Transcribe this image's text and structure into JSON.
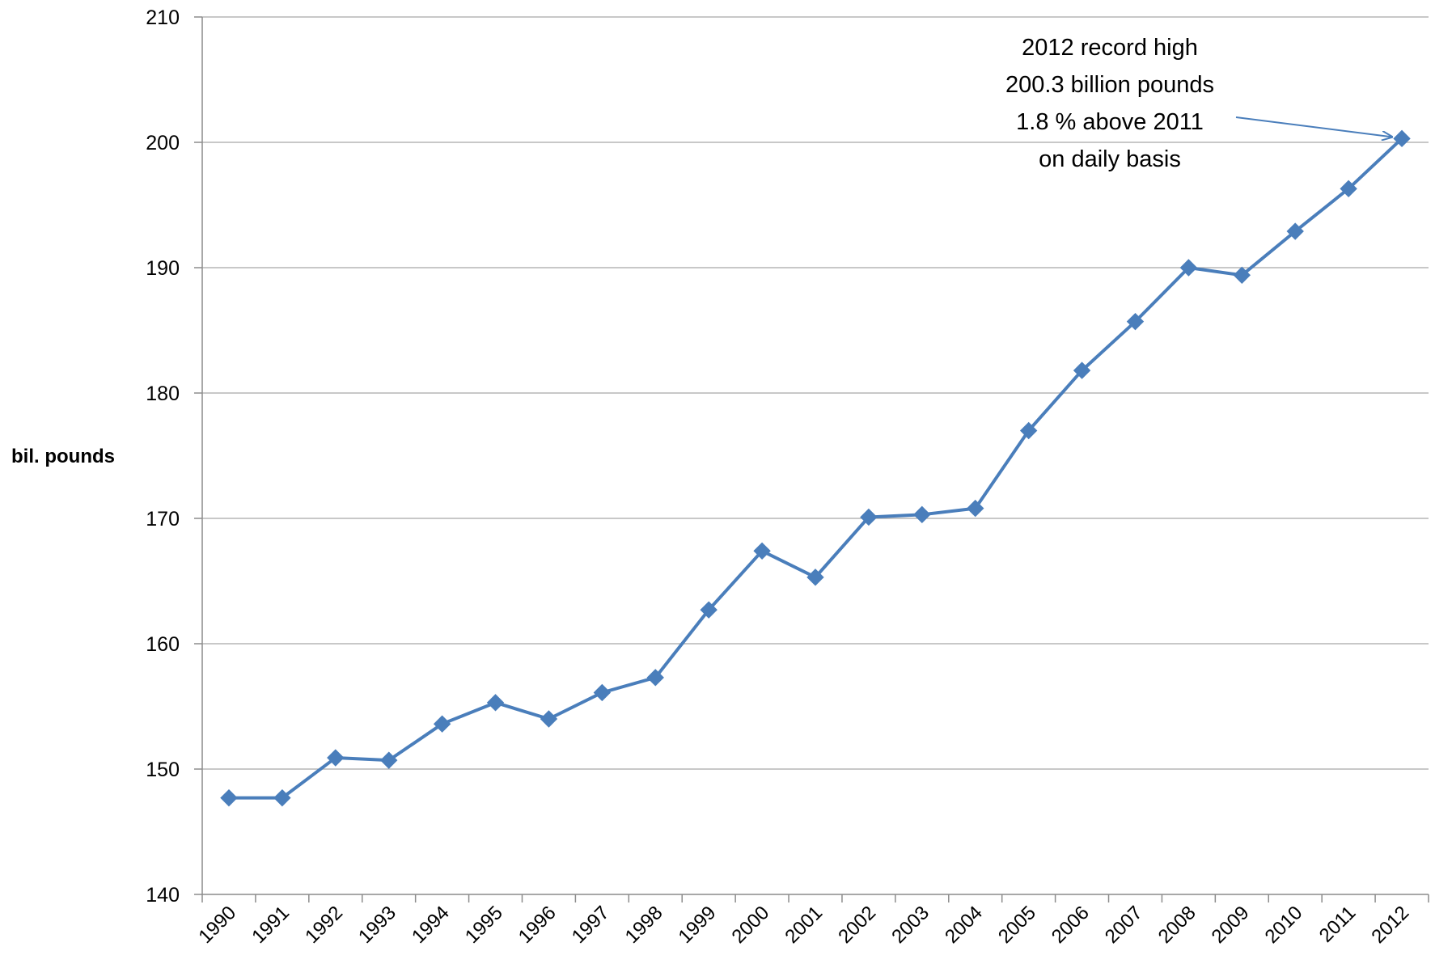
{
  "chart_data": {
    "type": "line",
    "title": "",
    "xlabel": "",
    "ylabel": "bil. pounds",
    "ylim": [
      140,
      210
    ],
    "yticks": [
      140,
      150,
      160,
      170,
      180,
      190,
      200,
      210
    ],
    "grid": "horizontal",
    "legend": "none",
    "categories": [
      "1990",
      "1991",
      "1992",
      "1993",
      "1994",
      "1995",
      "1996",
      "1997",
      "1998",
      "1999",
      "2000",
      "2001",
      "2002",
      "2003",
      "2004",
      "2005",
      "2006",
      "2007",
      "2008",
      "2009",
      "2010",
      "2011",
      "2012"
    ],
    "series": [
      {
        "values": [
          147.7,
          147.7,
          150.9,
          150.7,
          153.6,
          155.3,
          154.0,
          156.1,
          157.3,
          162.7,
          167.4,
          165.3,
          170.1,
          170.3,
          170.8,
          177.0,
          181.8,
          185.7,
          190.0,
          189.4,
          192.9,
          196.3,
          200.3
        ],
        "color": "#4a7ebb",
        "marker": "diamond"
      }
    ],
    "annotation": {
      "lines": [
        "2012 record high",
        "200.3 billion pounds",
        "1.8 % above 2011",
        "on daily basis"
      ],
      "points_to": "2012"
    }
  }
}
